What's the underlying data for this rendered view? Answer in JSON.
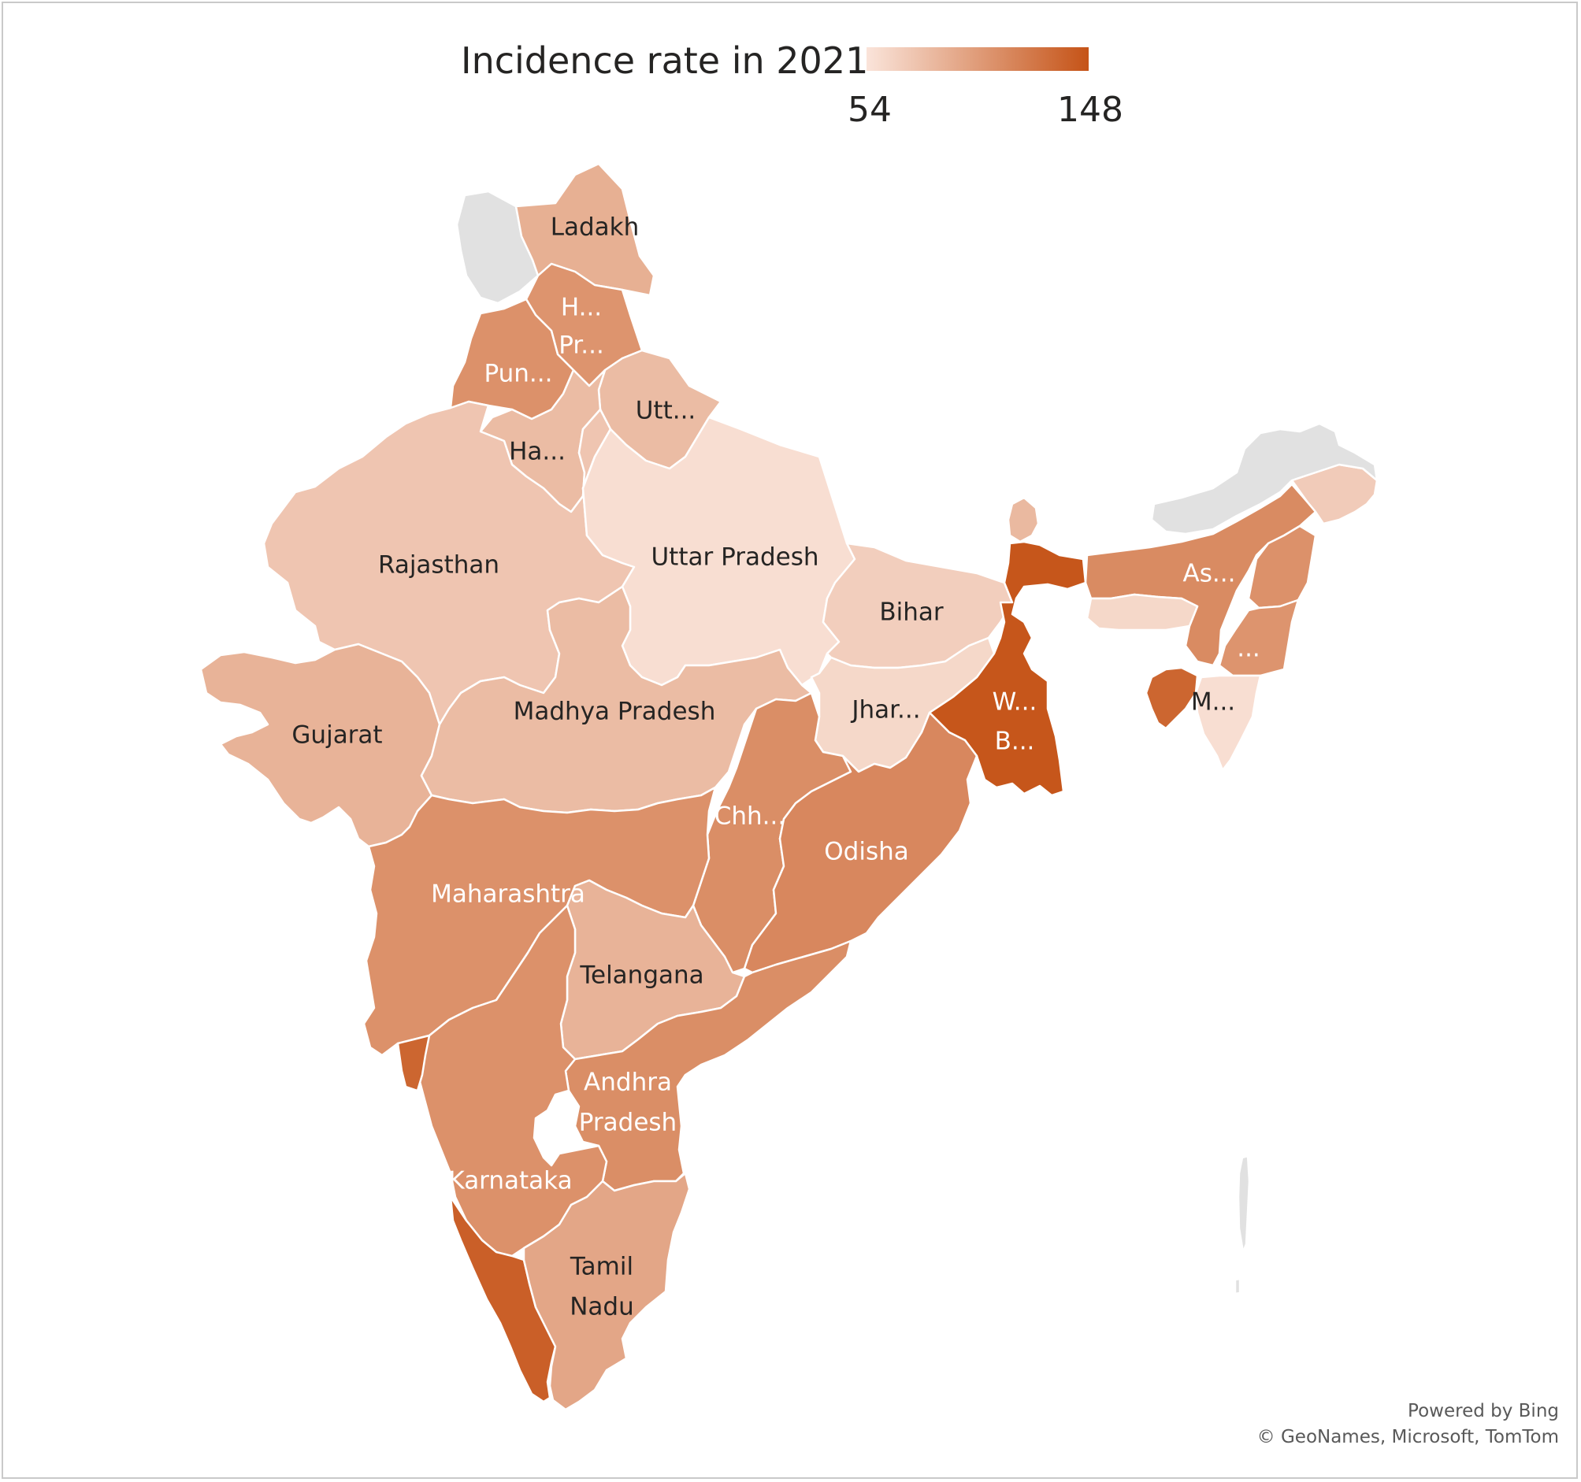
{
  "legend": {
    "title": "Incidence rate in 2021",
    "min_label": "54",
    "max_label": "148",
    "min_value": 54,
    "max_value": 148,
    "color_low": "#fae4da",
    "color_high": "#c55317"
  },
  "no_data_color": "#e1e1e1",
  "regions": [
    {
      "id": "jammu-kashmir",
      "label": "",
      "value": null
    },
    {
      "id": "ladakh",
      "label": "Ladakh",
      "value": 88
    },
    {
      "id": "himachal-pradesh",
      "label": "H... Pr...",
      "label_lines": [
        "H...",
        "Pr..."
      ],
      "value": 106
    },
    {
      "id": "punjab",
      "label": "Pun...",
      "value": 108
    },
    {
      "id": "uttarakhand",
      "label": "Utt...",
      "value": 80
    },
    {
      "id": "haryana",
      "label": "Ha...",
      "value": 80
    },
    {
      "id": "rajasthan",
      "label": "Rajasthan",
      "value": 74
    },
    {
      "id": "uttar-pradesh",
      "label": "Uttar Pradesh",
      "value": 58
    },
    {
      "id": "bihar",
      "label": "Bihar",
      "value": 68
    },
    {
      "id": "sikkim",
      "label": "",
      "value": 82
    },
    {
      "id": "arunachal-pradesh",
      "label": "",
      "value": 70
    },
    {
      "id": "assam",
      "label": "As...",
      "value": 112
    },
    {
      "id": "meghalaya",
      "label": "",
      "value": 62
    },
    {
      "id": "nagaland",
      "label": "",
      "value": 108
    },
    {
      "id": "manipur",
      "label": "...",
      "value": 106
    },
    {
      "id": "mizoram",
      "label": "M...",
      "value": 58
    },
    {
      "id": "tripura",
      "label": "",
      "value": 136
    },
    {
      "id": "gujarat",
      "label": "Gujarat",
      "value": 86
    },
    {
      "id": "madhya-pradesh",
      "label": "Madhya Pradesh",
      "value": 80
    },
    {
      "id": "jharkhand",
      "label": "Jhar...",
      "value": 62
    },
    {
      "id": "west-bengal",
      "label": "W... B...",
      "label_lines": [
        "W...",
        "B..."
      ],
      "value": 146
    },
    {
      "id": "chhattisgarh",
      "label": "Chh...",
      "value": 110
    },
    {
      "id": "odisha",
      "label": "Odisha",
      "value": 114
    },
    {
      "id": "maharashtra",
      "label": "Maharashtra",
      "value": 108
    },
    {
      "id": "telangana",
      "label": "Telangana",
      "value": 86
    },
    {
      "id": "andhra-pradesh",
      "label": "Andhra Pradesh",
      "label_lines": [
        "Andhra",
        "Pradesh"
      ],
      "value": 110
    },
    {
      "id": "karnataka",
      "label": "Karnataka",
      "value": 108
    },
    {
      "id": "goa",
      "label": "",
      "value": 136
    },
    {
      "id": "kerala",
      "label": "",
      "value": 140
    },
    {
      "id": "tamil-nadu",
      "label": "Tamil Nadu",
      "label_lines": [
        "Tamil",
        "Nadu"
      ],
      "value": 94
    },
    {
      "id": "andaman-nicobar",
      "label": "",
      "value": null
    }
  ],
  "credit": {
    "line1": "Powered by Bing",
    "line2": "© GeoNames, Microsoft, TomTom"
  }
}
